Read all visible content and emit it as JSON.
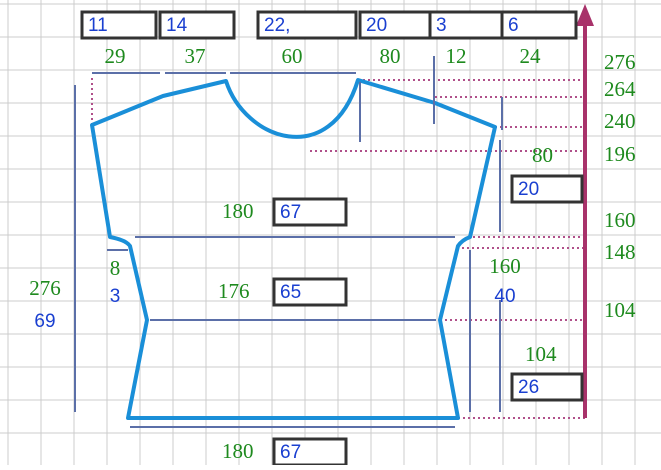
{
  "top_boxes": [
    "11",
    "14",
    "22,",
    "20",
    "3",
    "6"
  ],
  "top_widths": [
    "29",
    "37",
    "60",
    "80",
    "12",
    "24"
  ],
  "right_heights": [
    "276",
    "264",
    "240",
    "196",
    "160",
    "148",
    "104"
  ],
  "shoulder": {
    "width": "80",
    "box": "20"
  },
  "chest": {
    "width": "180",
    "box": "67"
  },
  "underarm": {
    "width": "8",
    "count": "3"
  },
  "side": {
    "height": "160",
    "count": "40"
  },
  "total": {
    "height": "276",
    "count": "69"
  },
  "waist": {
    "width": "176",
    "box": "65"
  },
  "lower": {
    "height": "104",
    "box": "26"
  },
  "bottom": {
    "width": "180",
    "box": "67"
  }
}
